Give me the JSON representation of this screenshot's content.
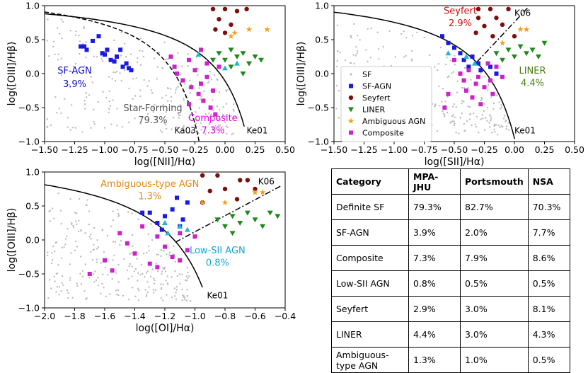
{
  "chart_data": [
    {
      "type": "scatter",
      "panel": "nii",
      "xlabel": "log([NII]/Hα)",
      "ylabel": "log([OIII]/Hβ)",
      "xlim": [
        -1.5,
        0.5
      ],
      "ylim": [
        -1.0,
        1.0
      ],
      "xticks": [
        "−1.50",
        "−1.25",
        "−1.00",
        "−0.75",
        "−0.50",
        "−0.25",
        "0.00",
        "0.25",
        "0.50"
      ],
      "yticks": [
        "−1.0",
        "−0.5",
        "0.0",
        "0.5",
        "1.0"
      ],
      "curves": [
        {
          "name": "Ka03",
          "label": "Ka03",
          "style": "dashed"
        },
        {
          "name": "Ke01",
          "label": "Ke01",
          "style": "solid"
        }
      ],
      "annotations": [
        {
          "text": "SF-AGN",
          "color": "#1010d0"
        },
        {
          "text": "3.9%",
          "color": "#1010d0"
        },
        {
          "text": "Star-Forming",
          "color": "#555555"
        },
        {
          "text": "79.3%",
          "color": "#555555"
        },
        {
          "text": "Composite",
          "color": "#e000e0"
        },
        {
          "text": "7.3%",
          "color": "#e000e0"
        }
      ],
      "series": [
        {
          "name": "SF-AGN",
          "marker": "square",
          "color": "#1a1ae6",
          "points": [
            [
              -1.2,
              0.4
            ],
            [
              -1.17,
              0.4
            ],
            [
              -1.15,
              0.35
            ],
            [
              -1.1,
              0.48
            ],
            [
              -1.05,
              0.55
            ],
            [
              -1.02,
              0.3
            ],
            [
              -1.0,
              0.28
            ],
            [
              -0.98,
              0.35
            ],
            [
              -0.95,
              0.2
            ],
            [
              -0.92,
              0.18
            ],
            [
              -0.9,
              0.25
            ],
            [
              -0.87,
              0.35
            ],
            [
              -0.85,
              0.1
            ],
            [
              -0.82,
              0.15
            ],
            [
              -0.8,
              0.08
            ],
            [
              -0.78,
              0.05
            ]
          ]
        },
        {
          "name": "Composite",
          "marker": "square",
          "color": "#cc22cc",
          "points": [
            [
              -0.45,
              0.25
            ],
            [
              -0.42,
              0.1
            ],
            [
              -0.4,
              0.0
            ],
            [
              -0.35,
              -0.1
            ],
            [
              -0.3,
              0.2
            ],
            [
              -0.28,
              -0.2
            ],
            [
              -0.25,
              0.05
            ],
            [
              -0.22,
              -0.3
            ],
            [
              -0.2,
              -0.15
            ],
            [
              -0.18,
              -0.4
            ],
            [
              -0.15,
              -0.05
            ],
            [
              -0.12,
              -0.5
            ],
            [
              -0.1,
              -0.25
            ],
            [
              -0.08,
              -0.6
            ],
            [
              -0.05,
              0.1
            ],
            [
              -0.3,
              -0.45
            ],
            [
              -0.2,
              0.35
            ],
            [
              -0.15,
              0.15
            ]
          ]
        },
        {
          "name": "Seyfert",
          "marker": "circle",
          "color": "#7a0f0f",
          "points": [
            [
              -0.1,
              0.95
            ],
            [
              0.0,
              0.95
            ],
            [
              0.1,
              0.92
            ],
            [
              -0.05,
              0.8
            ],
            [
              0.05,
              0.72
            ],
            [
              0.0,
              0.6
            ],
            [
              -0.08,
              0.65
            ],
            [
              0.18,
              0.95
            ]
          ]
        },
        {
          "name": "LINER",
          "marker": "triangle-down",
          "color": "#1e8a1e",
          "points": [
            [
              -0.05,
              0.3
            ],
            [
              0.0,
              0.2
            ],
            [
              0.05,
              0.35
            ],
            [
              0.1,
              0.25
            ],
            [
              0.15,
              0.3
            ],
            [
              0.2,
              0.15
            ],
            [
              0.25,
              0.25
            ],
            [
              0.05,
              0.1
            ],
            [
              0.15,
              0.0
            ],
            [
              -0.1,
              0.2
            ],
            [
              0.3,
              0.2
            ]
          ]
        },
        {
          "name": "Ambiguous AGN",
          "marker": "star",
          "color": "#f5a01a",
          "points": [
            [
              0.05,
              0.55
            ],
            [
              0.08,
              0.6
            ],
            [
              0.2,
              0.65
            ],
            [
              0.35,
              0.65
            ]
          ]
        },
        {
          "name": "Low-SII AGN",
          "marker": "triangle-up",
          "color": "#20b8c8",
          "points": [
            [
              -0.22,
              0.28
            ],
            [
              0.0,
              0.08
            ],
            [
              0.1,
              0.15
            ]
          ]
        }
      ]
    },
    {
      "type": "scatter",
      "panel": "sii",
      "xlabel": "log([SII]/Hα)",
      "ylabel": "log([OIII]/Hβ)",
      "xlim": [
        -1.5,
        0.5
      ],
      "ylim": [
        -1.0,
        1.0
      ],
      "xticks": [
        "−1.50",
        "−1.25",
        "−1.00",
        "−0.75",
        "−0.50",
        "−0.25",
        "0.00",
        "0.25",
        "0.50"
      ],
      "yticks": [
        "−1.0",
        "−0.5",
        "0.0",
        "0.5",
        "1.0"
      ],
      "curves": [
        {
          "name": "Ke01",
          "label": "Ke01",
          "style": "solid"
        },
        {
          "name": "K06",
          "label": "K06",
          "style": "dashdot"
        }
      ],
      "annotations": [
        {
          "text": "Seyfert",
          "color": "#cc1111"
        },
        {
          "text": "2.9%",
          "color": "#cc1111"
        },
        {
          "text": "LINER",
          "color": "#4a7a10"
        },
        {
          "text": "4.4%",
          "color": "#4a7a10"
        }
      ],
      "legend": [
        "SF",
        "SF-AGN",
        "Seyfert",
        "LINER",
        "Ambiguous AGN",
        "Composite"
      ],
      "legend_position": "center-left",
      "series": [
        {
          "name": "SF-AGN",
          "marker": "square",
          "color": "#1a1ae6",
          "points": [
            [
              -0.6,
              0.55
            ],
            [
              -0.55,
              0.45
            ],
            [
              -0.5,
              0.38
            ],
            [
              -0.45,
              0.3
            ],
            [
              -0.42,
              0.2
            ],
            [
              -0.38,
              0.1
            ],
            [
              -0.35,
              0.25
            ],
            [
              -0.3,
              0.15
            ],
            [
              -0.28,
              0.05
            ],
            [
              -0.2,
              0.1
            ],
            [
              -0.15,
              0.0
            ]
          ]
        },
        {
          "name": "Composite",
          "marker": "square",
          "color": "#cc22cc",
          "points": [
            [
              -0.5,
              0.2
            ],
            [
              -0.45,
              0.0
            ],
            [
              -0.42,
              -0.1
            ],
            [
              -0.4,
              -0.25
            ],
            [
              -0.38,
              0.05
            ],
            [
              -0.35,
              -0.35
            ],
            [
              -0.32,
              -0.15
            ],
            [
              -0.3,
              -0.05
            ],
            [
              -0.28,
              -0.45
            ],
            [
              -0.25,
              -0.2
            ],
            [
              -0.22,
              0.15
            ],
            [
              -0.2,
              -0.1
            ],
            [
              -0.18,
              -0.3
            ],
            [
              -0.15,
              0.1
            ],
            [
              -0.1,
              -0.05
            ],
            [
              -0.58,
              -0.5
            ],
            [
              -0.55,
              -0.3
            ]
          ]
        },
        {
          "name": "Seyfert",
          "marker": "circle",
          "color": "#7a0f0f",
          "points": [
            [
              -0.3,
              0.95
            ],
            [
              -0.2,
              0.95
            ],
            [
              -0.05,
              0.95
            ],
            [
              -0.3,
              0.82
            ],
            [
              -0.15,
              0.82
            ],
            [
              -0.25,
              0.7
            ],
            [
              -0.1,
              0.72
            ],
            [
              -0.32,
              0.6
            ],
            [
              -0.18,
              0.55
            ],
            [
              0.0,
              0.55
            ]
          ]
        },
        {
          "name": "LINER",
          "marker": "triangle-down",
          "color": "#1e8a1e",
          "points": [
            [
              -0.15,
              0.3
            ],
            [
              -0.1,
              0.2
            ],
            [
              -0.05,
              0.35
            ],
            [
              0.0,
              0.25
            ],
            [
              0.05,
              0.4
            ],
            [
              0.1,
              0.3
            ],
            [
              0.15,
              0.35
            ],
            [
              0.2,
              0.25
            ],
            [
              0.25,
              0.45
            ]
          ]
        },
        {
          "name": "Ambiguous AGN",
          "marker": "star",
          "color": "#f5a01a",
          "points": [
            [
              -0.1,
              0.45
            ],
            [
              0.05,
              0.65
            ],
            [
              0.1,
              0.65
            ]
          ]
        },
        {
          "name": "Low-SII AGN",
          "marker": "triangle-up",
          "color": "#20b8c8",
          "points": [
            [
              -0.55,
              0.3
            ],
            [
              -0.4,
              0.25
            ],
            [
              -0.33,
              0.15
            ]
          ]
        }
      ]
    },
    {
      "type": "scatter",
      "panel": "oi",
      "xlabel": "log([OI]/Hα)",
      "ylabel": "log([OIII]/Hβ)",
      "xlim": [
        -2.0,
        -0.4
      ],
      "ylim": [
        -1.0,
        1.0
      ],
      "xticks": [
        "−2.0",
        "−1.8",
        "−1.6",
        "−1.4",
        "−1.2",
        "−1.0",
        "−0.8",
        "−0.6",
        "−0.4"
      ],
      "yticks": [
        "−1.0",
        "−0.5",
        "0.0",
        "0.5",
        "1.0"
      ],
      "curves": [
        {
          "name": "Ke01",
          "label": "Ke01",
          "style": "solid"
        },
        {
          "name": "K06",
          "label": "K06",
          "style": "dashdot"
        }
      ],
      "annotations": [
        {
          "text": "Ambiguous-type AGN",
          "color": "#e08a10"
        },
        {
          "text": "1.3%",
          "color": "#e08a10"
        },
        {
          "text": "Low-SII AGN",
          "color": "#10a8d8"
        },
        {
          "text": "0.8%",
          "color": "#10a8d8"
        }
      ],
      "series": [
        {
          "name": "SF-AGN",
          "marker": "square",
          "color": "#1a1ae6",
          "points": [
            [
              -1.35,
              0.4
            ],
            [
              -1.3,
              0.4
            ],
            [
              -1.25,
              0.25
            ],
            [
              -1.2,
              0.35
            ],
            [
              -1.15,
              0.45
            ],
            [
              -1.1,
              0.2
            ],
            [
              -1.22,
              0.15
            ],
            [
              -1.08,
              0.3
            ],
            [
              -1.05,
              0.55
            ],
            [
              -1.12,
              0.62
            ]
          ]
        },
        {
          "name": "Composite",
          "marker": "square",
          "color": "#cc22cc",
          "points": [
            [
              -1.5,
              0.1
            ],
            [
              -1.45,
              -0.05
            ],
            [
              -1.4,
              -0.2
            ],
            [
              -1.35,
              0.2
            ],
            [
              -1.3,
              -0.35
            ],
            [
              -1.25,
              0.05
            ],
            [
              -1.2,
              -0.1
            ],
            [
              -1.15,
              -0.25
            ],
            [
              -1.1,
              0.1
            ],
            [
              -1.05,
              -0.15
            ],
            [
              -1.0,
              0.05
            ],
            [
              -1.6,
              -0.3
            ],
            [
              -1.55,
              -0.45
            ],
            [
              -1.7,
              -0.5
            ],
            [
              -1.25,
              -0.4
            ],
            [
              -1.1,
              -0.3
            ]
          ]
        },
        {
          "name": "Seyfert",
          "marker": "circle",
          "color": "#7a0f0f",
          "points": [
            [
              -0.95,
              0.95
            ],
            [
              -0.85,
              0.95
            ],
            [
              -0.7,
              0.88
            ],
            [
              -0.65,
              0.88
            ],
            [
              -0.9,
              0.72
            ],
            [
              -0.8,
              0.75
            ],
            [
              -0.6,
              0.75
            ],
            [
              -0.95,
              0.55
            ],
            [
              -0.72,
              0.6
            ]
          ]
        },
        {
          "name": "LINER",
          "marker": "triangle-down",
          "color": "#1e8a1e",
          "points": [
            [
              -0.85,
              0.3
            ],
            [
              -0.8,
              0.2
            ],
            [
              -0.75,
              0.35
            ],
            [
              -0.7,
              0.25
            ],
            [
              -0.65,
              0.4
            ],
            [
              -0.6,
              0.3
            ],
            [
              -0.55,
              0.2
            ],
            [
              -0.5,
              0.4
            ],
            [
              -0.45,
              0.35
            ],
            [
              -0.75,
              0.1
            ]
          ]
        },
        {
          "name": "Ambiguous AGN",
          "marker": "star",
          "color": "#f5a01a",
          "points": [
            [
              -0.95,
              0.55
            ],
            [
              -0.8,
              0.55
            ],
            [
              -0.6,
              0.7
            ],
            [
              -0.55,
              0.7
            ]
          ]
        },
        {
          "name": "Low-SII AGN",
          "marker": "triangle-up",
          "color": "#20b8c8",
          "points": [
            [
              -1.2,
              0.25
            ],
            [
              -1.1,
              0.2
            ],
            [
              -1.05,
              0.15
            ],
            [
              -1.18,
              0.1
            ]
          ]
        }
      ]
    },
    {
      "type": "table",
      "columns": [
        "Category",
        "MPA-JHU",
        "Portsmouth",
        "NSA"
      ],
      "rows": [
        [
          "Definite SF",
          "79.3%",
          "82.7%",
          "70.3%"
        ],
        [
          "SF-AGN",
          "3.9%",
          "2.0%",
          "7.7%"
        ],
        [
          "Composite",
          "7.3%",
          "7.9%",
          "8.6%"
        ],
        [
          "Low-SII AGN",
          "0.8%",
          "0.5%",
          "0.5%"
        ],
        [
          "Seyfert",
          "2.9%",
          "3.0%",
          "8.1%"
        ],
        [
          "LINER",
          "4.4%",
          "3.0%",
          "4.3%"
        ],
        [
          "Ambiguous-type AGN",
          "1.3%",
          "1.0%",
          "0.5%"
        ]
      ]
    }
  ]
}
